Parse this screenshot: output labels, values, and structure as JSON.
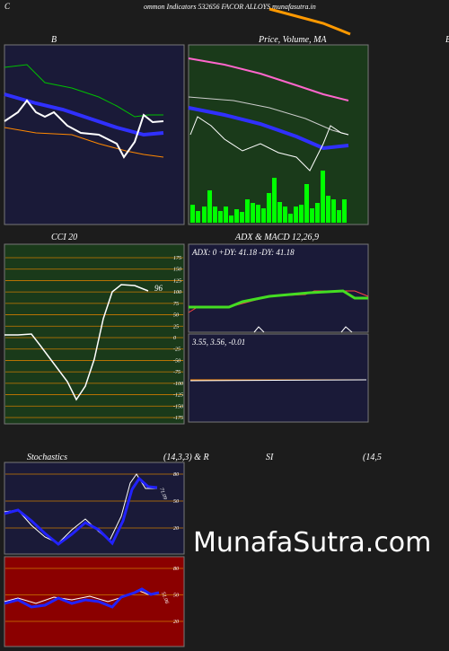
{
  "header": {
    "left": "C",
    "title": "ommon  Indicators 532656  FACOR ALLOYS munafasutra.in"
  },
  "panels": {
    "bollinger": {
      "title": "B"
    },
    "price": {
      "title": "Price,  Volume,  MA",
      "edge": "B"
    },
    "cci": {
      "title": "CCI 20",
      "ticks": [
        "175",
        "150",
        "125",
        "100",
        "75",
        "50",
        "25",
        "0",
        "-25",
        "-50",
        "-75",
        "-100",
        "-125",
        "-150",
        "-175"
      ],
      "last": "96"
    },
    "adx_macd": {
      "title": "ADX  & MACD 12,26,9",
      "adx_text": "ADX: 0  +DY: 41.18  -DY: 41.18",
      "macd_text": "3.55,  3.56,  -0.01"
    },
    "stochastics": {
      "title": "Stochastics",
      "params": "(14,3,3) & R",
      "rsi_title": "SI",
      "rsi_params": "(14,5",
      "ticks": [
        "80",
        "50",
        "20"
      ],
      "last": "71.09"
    },
    "rsi": {
      "ticks": [
        "80",
        "50",
        "20"
      ],
      "last": "51.06"
    }
  },
  "watermark": "MunafaSutra.com"
}
